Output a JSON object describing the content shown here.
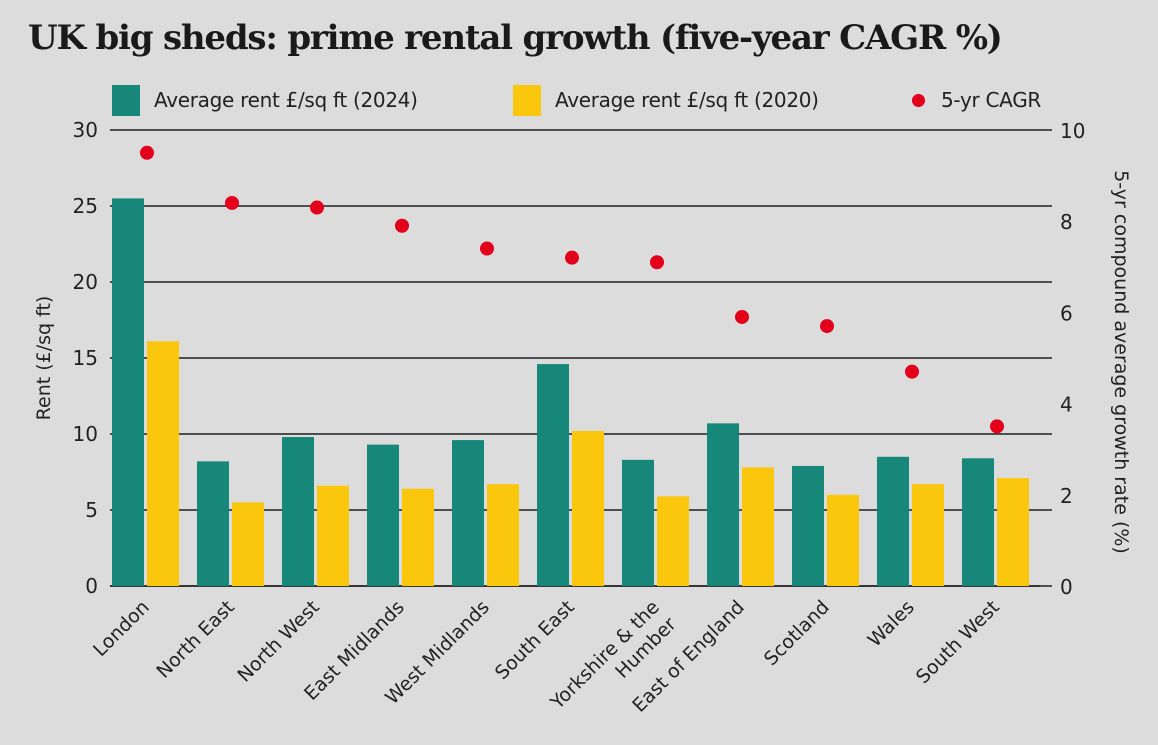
{
  "chart_data": {
    "type": "bar",
    "title": "UK big sheds: prime rental growth (five-year CAGR %)",
    "categories": [
      "London",
      "North East",
      "North West",
      "East Midlands",
      "West Midlands",
      "South East",
      "Yorkshire & the Humber",
      "East of England",
      "Scotland",
      "Wales",
      "South West"
    ],
    "category_lines": [
      [
        "London"
      ],
      [
        "North East"
      ],
      [
        "North West"
      ],
      [
        "East Midlands"
      ],
      [
        "West Midlands"
      ],
      [
        "South East"
      ],
      [
        "Yorkshire & the",
        "Humber"
      ],
      [
        "East of England"
      ],
      [
        "Scotland"
      ],
      [
        "Wales"
      ],
      [
        "South West"
      ]
    ],
    "series": [
      {
        "name": "Average rent £/sq ft (2024)",
        "type": "bar",
        "axis": "left",
        "color": "#17877a",
        "values": [
          25.5,
          8.2,
          9.8,
          9.3,
          9.6,
          14.6,
          8.3,
          10.7,
          7.9,
          8.5,
          8.4
        ]
      },
      {
        "name": "Average rent £/sq ft (2020)",
        "type": "bar",
        "axis": "left",
        "color": "#fbc70c",
        "values": [
          16.1,
          5.5,
          6.6,
          6.4,
          6.7,
          10.2,
          5.9,
          7.8,
          6.0,
          6.7,
          7.1
        ]
      },
      {
        "name": "5-yr CAGR",
        "type": "scatter",
        "axis": "right",
        "color": "#e2001a",
        "values": [
          9.5,
          8.4,
          8.3,
          7.9,
          7.4,
          7.2,
          7.1,
          5.9,
          5.7,
          4.7,
          3.5
        ]
      }
    ],
    "ylabel": "Rent (£/sq ft)",
    "ylim": [
      0,
      30
    ],
    "yticks": [
      0,
      5,
      10,
      15,
      20,
      25,
      30
    ],
    "y2label": "5-yr compound average growth rate (%)",
    "y2lim": [
      0,
      10
    ],
    "y2ticks": [
      0,
      2,
      4,
      6,
      8,
      10
    ],
    "grid": true,
    "legend_position": "top"
  },
  "legend": {
    "items": [
      {
        "label": "Average rent £/sq ft (2024)",
        "color": "#17877a",
        "shape": "square"
      },
      {
        "label": "Average rent £/sq ft (2020)",
        "color": "#fbc70c",
        "shape": "square"
      },
      {
        "label": "5-yr CAGR",
        "color": "#e2001a",
        "shape": "dot"
      }
    ]
  }
}
